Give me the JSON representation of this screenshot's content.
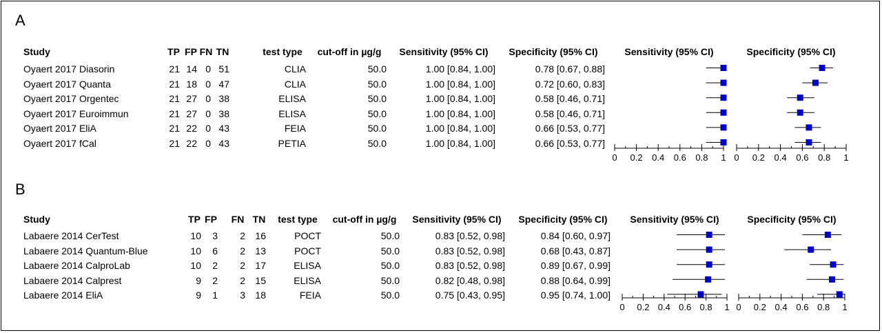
{
  "panels": [
    {
      "letter": "A",
      "headers": [
        "Study",
        "TP",
        "FP",
        "FN",
        "TN",
        "test type",
        "cut-off in µg/g",
        "Sensitivity (95% CI)",
        "Specificity (95% CI)"
      ],
      "forest_titles": [
        "Sensitivity (95% CI)",
        "Specificity (95% CI)"
      ],
      "rows": [
        {
          "study": "Oyaert 2017 Diasorin",
          "tp": "21",
          "fp": "14",
          "fn": "0",
          "tn": "51",
          "test_type": "CLIA",
          "cutoff": "50.0",
          "sens_text": "1.00 [0.84, 1.00]",
          "spec_text": "0.78 [0.67, 0.88]"
        },
        {
          "study": "Oyaert 2017 Quanta",
          "tp": "21",
          "fp": "18",
          "fn": "0",
          "tn": "47",
          "test_type": "CLIA",
          "cutoff": "50.0",
          "sens_text": "1.00 [0.84, 1.00]",
          "spec_text": "0.72 [0.60, 0.83]"
        },
        {
          "study": "Oyaert 2017 Orgentec",
          "tp": "21",
          "fp": "27",
          "fn": "0",
          "tn": "38",
          "test_type": "ELISA",
          "cutoff": "50.0",
          "sens_text": "1.00 [0.84, 1.00]",
          "spec_text": "0.58 [0.46, 0.71]"
        },
        {
          "study": "Oyaert 2017 Euroimmun",
          "tp": "21",
          "fp": "27",
          "fn": "0",
          "tn": "38",
          "test_type": "ELISA",
          "cutoff": "50.0",
          "sens_text": "1.00 [0.84, 1.00]",
          "spec_text": "0.58 [0.46, 0.71]"
        },
        {
          "study": "Oyaert 2017 EliA",
          "tp": "21",
          "fp": "22",
          "fn": "0",
          "tn": "43",
          "test_type": "FEIA",
          "cutoff": "50.0",
          "sens_text": "1.00 [0.84, 1.00]",
          "spec_text": "0.66 [0.53, 0.77]"
        },
        {
          "study": "Oyaert 2017 fCal",
          "tp": "21",
          "fp": "22",
          "fn": "0",
          "tn": "43",
          "test_type": "PETIA",
          "cutoff": "50.0",
          "sens_text": "1.00 [0.84, 1.00]",
          "spec_text": "0.66 [0.53, 0.77]"
        }
      ]
    },
    {
      "letter": "B",
      "headers": [
        "Study",
        "TP",
        "FP",
        "FN",
        "TN",
        "test type",
        "cut-off in µg/g",
        "Sensitivity (95% CI)",
        "Specificity (95% CI)"
      ],
      "forest_titles": [
        "Sensitivity (95% CI)",
        "Specificity (95% CI)"
      ],
      "rows": [
        {
          "study": "Labaere 2014 CerTest",
          "tp": "10",
          "fp": "3",
          "fn": "2",
          "tn": "16",
          "test_type": "POCT",
          "cutoff": "50.0",
          "sens_text": "0.83 [0.52, 0.98]",
          "spec_text": "0.84 [0.60, 0.97]"
        },
        {
          "study": "Labaere 2014 Quantum-Blue",
          "tp": "10",
          "fp": "6",
          "fn": "2",
          "tn": "13",
          "test_type": "POCT",
          "cutoff": "50.0",
          "sens_text": "0.83 [0.52, 0.98]",
          "spec_text": "0.68 [0.43, 0.87]"
        },
        {
          "study": "Labaere 2014 CalproLab",
          "tp": "10",
          "fp": "2",
          "fn": "2",
          "tn": "17",
          "test_type": "ELISA",
          "cutoff": "50.0",
          "sens_text": "0.83 [0.52, 0.98]",
          "spec_text": "0.89 [0.67, 0.99]"
        },
        {
          "study": "Labaere 2014 Calprest",
          "tp": "9",
          "fp": "2",
          "fn": "2",
          "tn": "15",
          "test_type": "ELISA",
          "cutoff": "50.0",
          "sens_text": "0.82 [0.48, 0.98]",
          "spec_text": "0.88 [0.64, 0.99]"
        },
        {
          "study": "Labaere 2014 EliA",
          "tp": "9",
          "fp": "1",
          "fn": "3",
          "tn": "18",
          "test_type": "FEIA",
          "cutoff": "50.0",
          "sens_text": "0.75 [0.43, 0.95]",
          "spec_text": "0.95 [0.74, 1.00]"
        }
      ]
    }
  ],
  "chart_data": [
    {
      "type": "scatter",
      "subtype": "forest-plot",
      "panel": "A",
      "title": "Sensitivity (95% CI)",
      "xlim": [
        0,
        1
      ],
      "xticks": [
        "0",
        "0.2",
        "0.4",
        "0.6",
        "0.8",
        "1"
      ],
      "categories": [
        "Oyaert 2017 Diasorin",
        "Oyaert 2017 Quanta",
        "Oyaert 2017 Orgentec",
        "Oyaert 2017 Euroimmun",
        "Oyaert 2017 EliA",
        "Oyaert 2017 fCal"
      ],
      "values": [
        1.0,
        1.0,
        1.0,
        1.0,
        1.0,
        1.0
      ],
      "lower": [
        0.84,
        0.84,
        0.84,
        0.84,
        0.84,
        0.84
      ],
      "upper": [
        1.0,
        1.0,
        1.0,
        1.0,
        1.0,
        1.0
      ],
      "marker_color": "#0000cc"
    },
    {
      "type": "scatter",
      "subtype": "forest-plot",
      "panel": "A",
      "title": "Specificity (95% CI)",
      "xlim": [
        0,
        1
      ],
      "xticks": [
        "0",
        "0.2",
        "0.4",
        "0.6",
        "0.8",
        "1"
      ],
      "categories": [
        "Oyaert 2017 Diasorin",
        "Oyaert 2017 Quanta",
        "Oyaert 2017 Orgentec",
        "Oyaert 2017 Euroimmun",
        "Oyaert 2017 EliA",
        "Oyaert 2017 fCal"
      ],
      "values": [
        0.78,
        0.72,
        0.58,
        0.58,
        0.66,
        0.66
      ],
      "lower": [
        0.67,
        0.6,
        0.46,
        0.46,
        0.53,
        0.53
      ],
      "upper": [
        0.88,
        0.83,
        0.71,
        0.71,
        0.77,
        0.77
      ],
      "marker_color": "#0000cc"
    },
    {
      "type": "scatter",
      "subtype": "forest-plot",
      "panel": "B",
      "title": "Sensitivity (95% CI)",
      "xlim": [
        0,
        1
      ],
      "xticks": [
        "0",
        "0.2",
        "0.4",
        "0.6",
        "0.8",
        "1"
      ],
      "categories": [
        "Labaere 2014 CerTest",
        "Labaere 2014 Quantum-Blue",
        "Labaere 2014 CalproLab",
        "Labaere 2014 Calprest",
        "Labaere 2014 EliA"
      ],
      "values": [
        0.83,
        0.83,
        0.83,
        0.82,
        0.75
      ],
      "lower": [
        0.52,
        0.52,
        0.52,
        0.48,
        0.43
      ],
      "upper": [
        0.98,
        0.98,
        0.98,
        0.98,
        0.95
      ],
      "marker_color": "#0000cc"
    },
    {
      "type": "scatter",
      "subtype": "forest-plot",
      "panel": "B",
      "title": "Specificity (95% CI)",
      "xlim": [
        0,
        1
      ],
      "xticks": [
        "0",
        "0.2",
        "0.4",
        "0.6",
        "0.8",
        "1"
      ],
      "categories": [
        "Labaere 2014 CerTest",
        "Labaere 2014 Quantum-Blue",
        "Labaere 2014 CalproLab",
        "Labaere 2014 Calprest",
        "Labaere 2014 EliA"
      ],
      "values": [
        0.84,
        0.68,
        0.89,
        0.88,
        0.95
      ],
      "lower": [
        0.6,
        0.43,
        0.67,
        0.64,
        0.74
      ],
      "upper": [
        0.97,
        0.87,
        0.99,
        0.99,
        1.0
      ],
      "marker_color": "#0000cc"
    }
  ]
}
